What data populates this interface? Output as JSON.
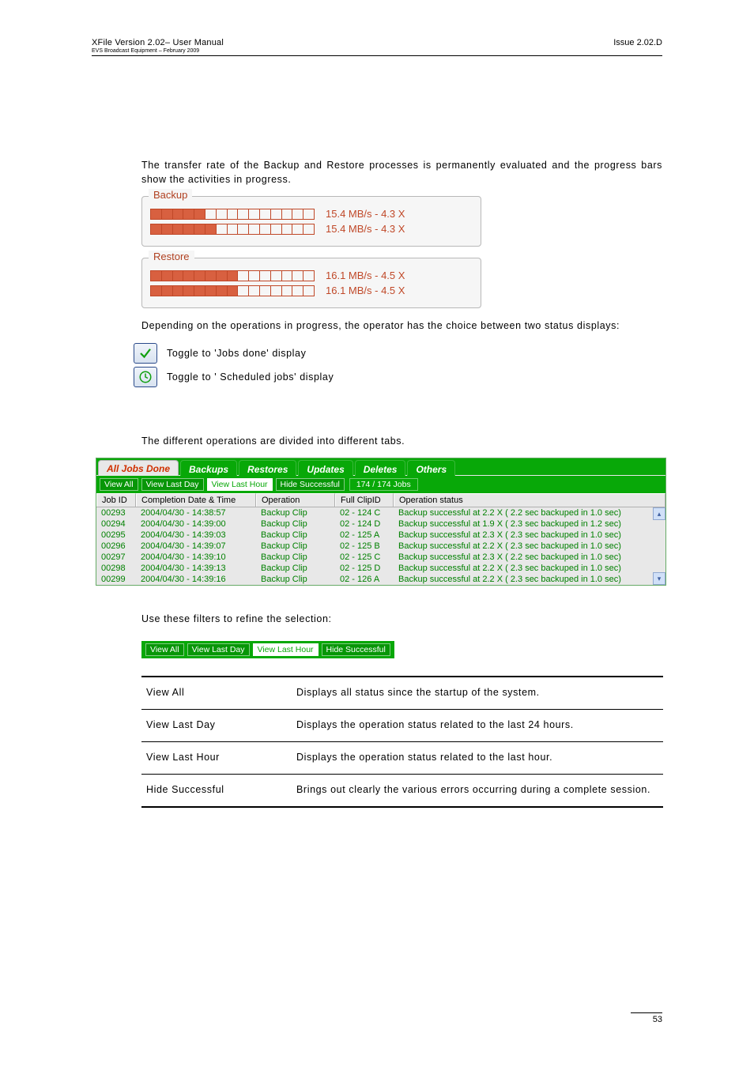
{
  "header": {
    "left_top": "XFile Version 2.02– User Manual",
    "left_bottom": "EVS Broadcast Equipment – February 2009",
    "right": "Issue 2.02.D"
  },
  "para_transfer": "The transfer rate of the Backup and Restore processes is permanently evaluated and the progress bars show the activities in progress.",
  "backup_panel": {
    "title": "Backup",
    "rows": [
      {
        "filled": 5,
        "total": 15,
        "label": "15.4 MB/s - 4.3 X"
      },
      {
        "filled": 6,
        "total": 15,
        "label": "15.4 MB/s - 4.3 X"
      }
    ]
  },
  "restore_panel": {
    "title": "Restore",
    "rows": [
      {
        "filled": 8,
        "total": 15,
        "label": "16.1 MB/s - 4.5 X"
      },
      {
        "filled": 8,
        "total": 15,
        "label": "16.1 MB/s - 4.5 X"
      }
    ]
  },
  "para_depending": "Depending on the operations in progress, the operator has the choice between two status displays:",
  "toggle_done": "Toggle to 'Jobs done' display",
  "toggle_sched": "Toggle to ' Scheduled jobs' display",
  "para_tabs": "The different operations are divided into different tabs.",
  "tabs": [
    "All Jobs Done",
    "Backups",
    "Restores",
    "Updates",
    "Deletes",
    "Others"
  ],
  "tabs_active_index": 0,
  "filters": [
    "View All",
    "View Last Day",
    "View Last Hour",
    "Hide Successful"
  ],
  "filters_active_index": 2,
  "job_count": "174 / 174 Jobs",
  "columns": [
    "Job ID",
    "Completion Date & Time",
    "Operation",
    "Full ClipID",
    "Operation status"
  ],
  "rows": [
    {
      "id": "00293",
      "date": "2004/04/30 - 14:38:57",
      "op": "Backup Clip",
      "clip": "02 - 124 C",
      "status": "Backup successful at 2.2 X ( 2.2 sec backuped in 1.0 sec)"
    },
    {
      "id": "00294",
      "date": "2004/04/30 - 14:39:00",
      "op": "Backup Clip",
      "clip": "02 - 124 D",
      "status": "Backup successful at 1.9 X ( 2.3 sec backuped in 1.2 sec)"
    },
    {
      "id": "00295",
      "date": "2004/04/30 - 14:39:03",
      "op": "Backup Clip",
      "clip": "02 - 125 A",
      "status": "Backup successful at 2.3 X ( 2.3 sec backuped in 1.0 sec)"
    },
    {
      "id": "00296",
      "date": "2004/04/30 - 14:39:07",
      "op": "Backup Clip",
      "clip": "02 - 125 B",
      "status": "Backup successful at 2.2 X ( 2.3 sec backuped in 1.0 sec)"
    },
    {
      "id": "00297",
      "date": "2004/04/30 - 14:39:10",
      "op": "Backup Clip",
      "clip": "02 - 125 C",
      "status": "Backup successful at 2.3 X ( 2.2 sec backuped in 1.0 sec)"
    },
    {
      "id": "00298",
      "date": "2004/04/30 - 14:39:13",
      "op": "Backup Clip",
      "clip": "02 - 125 D",
      "status": "Backup successful at 2.2 X ( 2.3 sec backuped in 1.0 sec)"
    },
    {
      "id": "00299",
      "date": "2004/04/30 - 14:39:16",
      "op": "Backup Clip",
      "clip": "02 - 126 A",
      "status": "Backup successful at 2.2 X ( 2.3 sec backuped in 1.0 sec)"
    }
  ],
  "para_usefilters": "Use these filters to refine the selection:",
  "def_rows": [
    {
      "term": "View All",
      "desc": "Displays all status since the startup of the system."
    },
    {
      "term": "View Last Day",
      "desc": "Displays the operation status related to the last 24 hours."
    },
    {
      "term": "View Last Hour",
      "desc": "Displays the operation status related to the last hour."
    },
    {
      "term": "Hide Successful",
      "desc": "Brings out clearly the various errors occurring during a complete session."
    }
  ],
  "page_number": "53",
  "colors": {
    "accent_green": "#08a808",
    "accent_orange": "#c04828",
    "row_text": "#008000"
  }
}
